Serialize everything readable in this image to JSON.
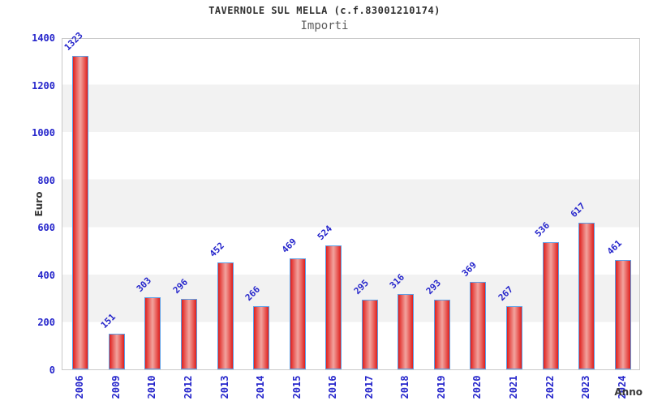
{
  "header": {
    "title": "TAVERNOLE SUL MELLA (c.f.83001210174)",
    "subtitle": "Importi"
  },
  "chart_data": {
    "type": "bar",
    "title": "TAVERNOLE SUL MELLA (c.f.83001210174)",
    "subtitle": "Importi",
    "xlabel": "Anno",
    "ylabel": "Euro",
    "categories": [
      "2006",
      "2009",
      "2010",
      "2012",
      "2013",
      "2014",
      "2015",
      "2016",
      "2017",
      "2018",
      "2019",
      "2020",
      "2021",
      "2022",
      "2023",
      "2024"
    ],
    "values": [
      1323,
      151,
      303,
      296,
      452,
      266,
      469,
      524,
      295,
      316,
      293,
      369,
      267,
      536,
      617,
      461
    ],
    "ylim": [
      0,
      1400
    ],
    "yticks": [
      0,
      200,
      400,
      600,
      800,
      1000,
      1200,
      1400
    ],
    "grid": "alternating-horizontal-bands",
    "legend_position": "none",
    "colors": {
      "bar_edge": "#df1f1d",
      "bar_center": "#f2a39e",
      "bar_border": "#5c9fe6",
      "label_blue": "#2525cb",
      "band_gray": "#f2f2f2",
      "plot_border": "#c9c9c9",
      "title_color": "#303030",
      "subtitle_color": "#5a5a5a"
    }
  }
}
